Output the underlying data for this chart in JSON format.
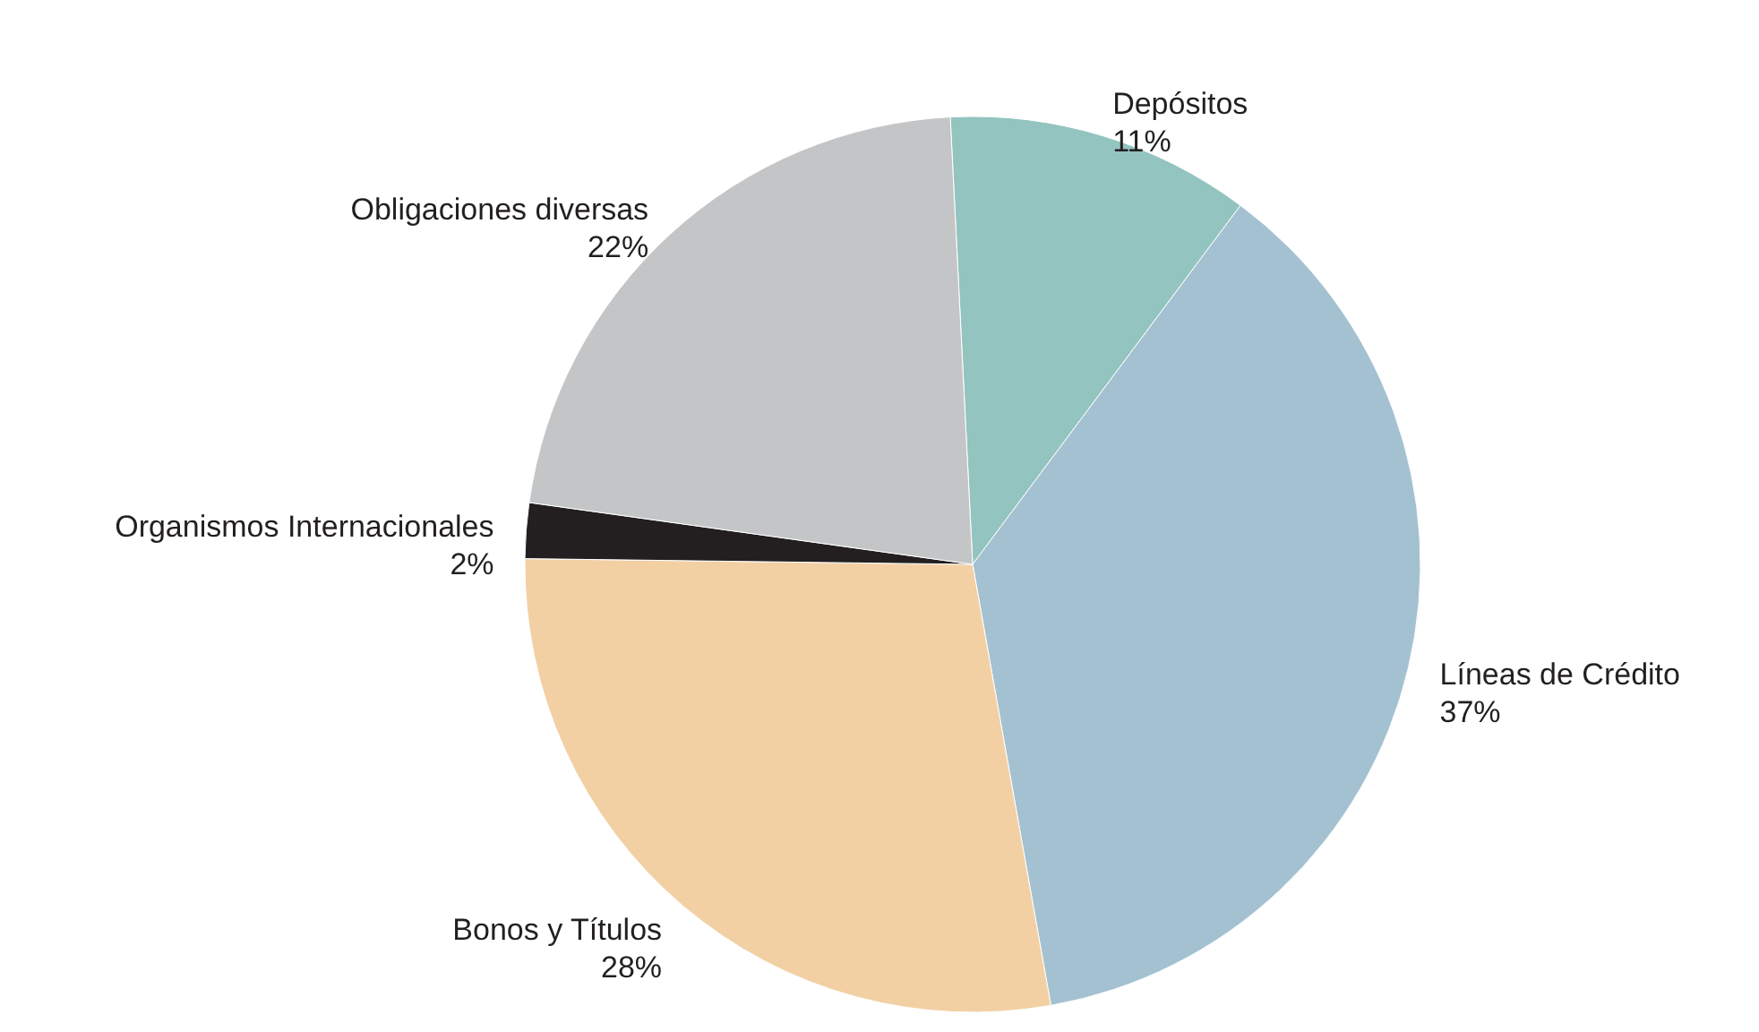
{
  "chart_data": {
    "type": "pie",
    "categories": [
      "Depósitos",
      "Líneas de Crédito",
      "Bonos y Títulos",
      "Organismos Internacionales",
      "Obligaciones diversas"
    ],
    "values": [
      11,
      37,
      28,
      2,
      22
    ],
    "value_labels": [
      "11%",
      "37%",
      "28%",
      "2%",
      "22%"
    ],
    "colors": [
      "#93c4bf",
      "#a4c1d1",
      "#f2d0a4",
      "#231f20",
      "#c4c5c7"
    ]
  }
}
